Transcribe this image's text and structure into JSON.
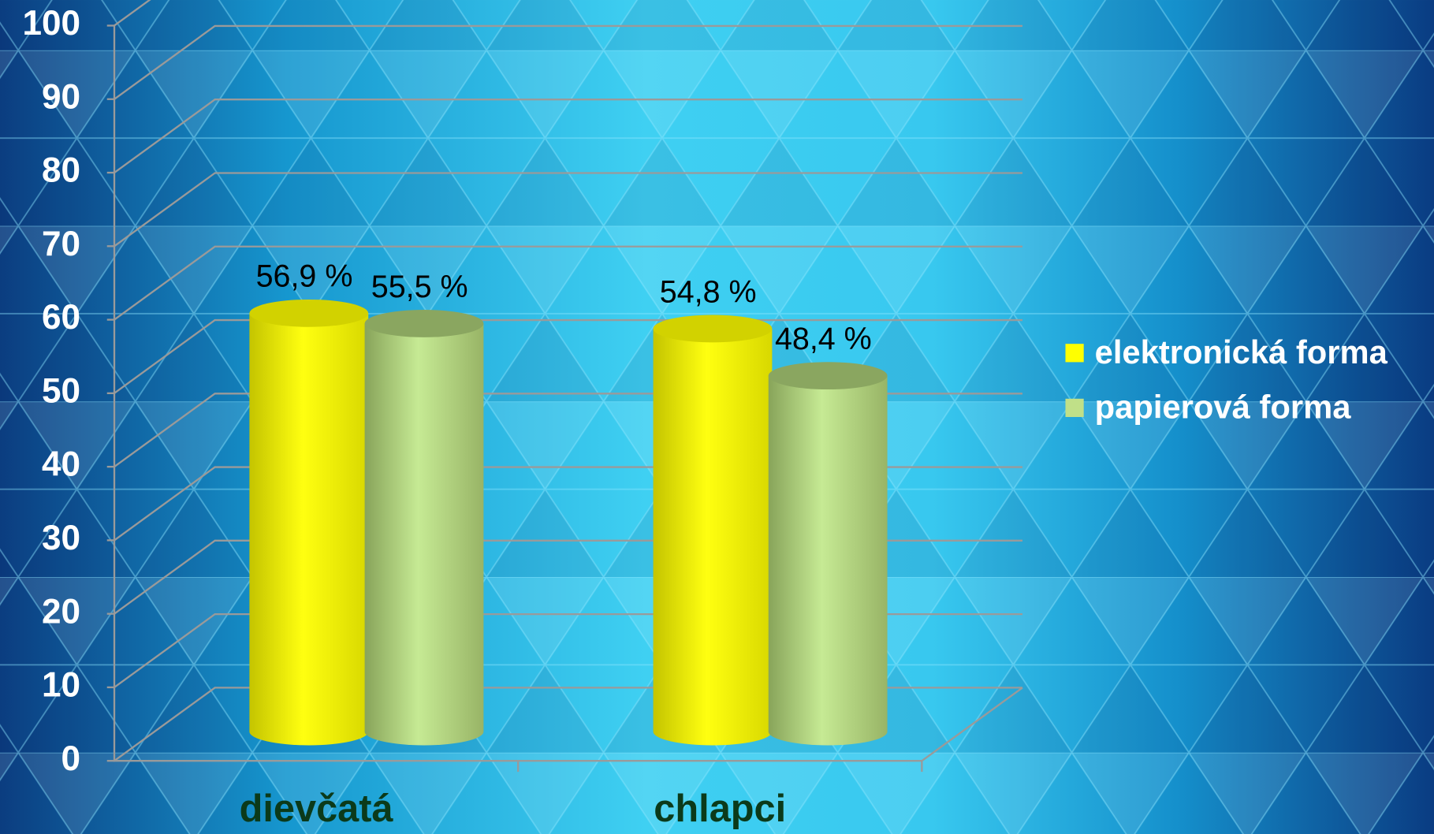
{
  "chart_data": {
    "type": "bar",
    "categories": [
      "dievčatá",
      "chlapci"
    ],
    "series": [
      {
        "name": "elektronická forma",
        "color": "#ffff00",
        "values": [
          56.9,
          54.8
        ],
        "value_labels": [
          "56,9 %",
          "54,8 %"
        ]
      },
      {
        "name": "papierová forma",
        "color": "#c0e088",
        "values": [
          55.5,
          48.4
        ],
        "value_labels": [
          "55,5 %",
          "48,4 %"
        ]
      }
    ],
    "ylim": [
      0,
      100
    ],
    "yticks": [
      0,
      10,
      20,
      30,
      40,
      50,
      60,
      70,
      80,
      90,
      100
    ],
    "grid": true,
    "legend": "right"
  }
}
